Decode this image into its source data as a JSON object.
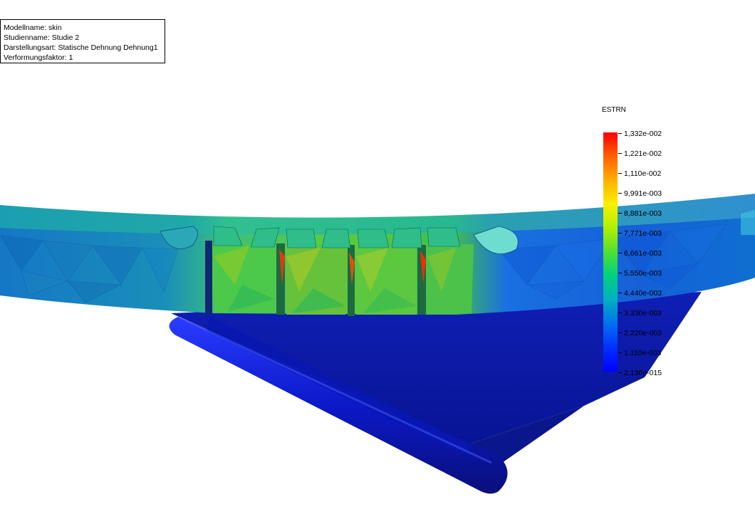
{
  "info": {
    "model_name": "Modellname: skin",
    "study_name": "Studienname: Studie 2",
    "plot_type": "Darstellungsart: Statische Dehnung Dehnung1",
    "deformation_scale": "Verformungsfaktor: 1"
  },
  "legend": {
    "title": "ESTRN",
    "labels": [
      "1,332e-002",
      "1,221e-002",
      "1,110e-002",
      "9,991e-003",
      "8,881e-003",
      "7,771e-003",
      "6,661e-003",
      "5,550e-003",
      "4,440e-003",
      "3,330e-003",
      "2,220e-003",
      "1,110e-003",
      "2,136e-015"
    ]
  },
  "colors": {
    "max": "#ff0000",
    "mid": "#50e030",
    "min": "#0000ff"
  }
}
